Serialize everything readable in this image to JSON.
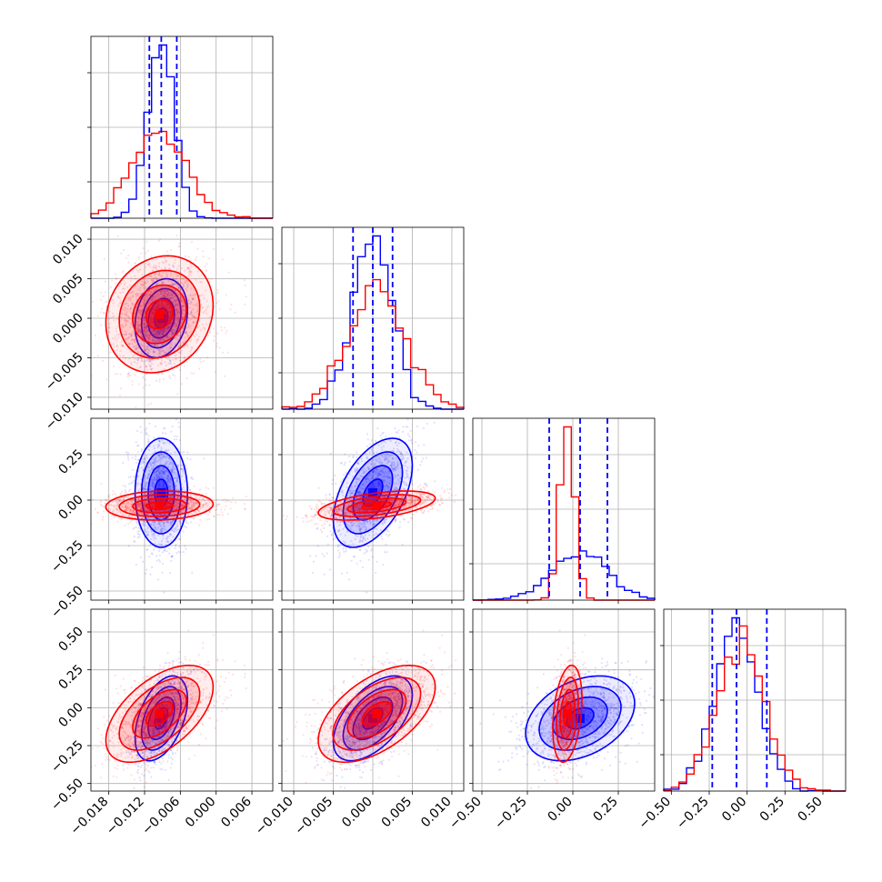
{
  "chart_data": {
    "type": "corner",
    "colors": {
      "blue": "#0000ff",
      "red": "#ff0000",
      "grid": "#b0b0b0"
    },
    "parameters": [
      {
        "range": [
          -0.021,
          0.0095
        ],
        "ticks": [
          -0.018,
          -0.012,
          -0.006,
          0.0,
          0.006
        ],
        "tick_labels": [
          "−0.018",
          "−0.012",
          "−0.006",
          "0.000",
          "0.006"
        ],
        "quantiles": [
          -0.0112,
          -0.0092,
          -0.0066
        ]
      },
      {
        "range": [
          -0.0115,
          0.0115
        ],
        "ticks": [
          -0.01,
          -0.005,
          0.0,
          0.005,
          0.01
        ],
        "tick_labels": [
          "−0.010",
          "−0.005",
          "0.000",
          "0.005",
          "0.010"
        ],
        "quantiles": [
          -0.0025,
          0.0,
          0.0025
        ]
      },
      {
        "range": [
          -0.55,
          0.45
        ],
        "ticks": [
          -0.5,
          -0.25,
          0.0,
          0.25
        ],
        "tick_labels": [
          "−0.50",
          "−0.25",
          "0.00",
          "0.25"
        ],
        "quantiles": [
          -0.13,
          0.04,
          0.19
        ]
      },
      {
        "range": [
          -0.55,
          0.65
        ],
        "ticks": [
          -0.5,
          -0.25,
          0.0,
          0.25,
          0.5
        ],
        "tick_labels": [
          "−0.50",
          "−0.25",
          "0.00",
          "0.25",
          "0.50"
        ],
        "quantiles": [
          -0.23,
          -0.07,
          0.13
        ]
      }
    ],
    "series": [
      {
        "color": "blue",
        "means": [
          -0.0092,
          0.0,
          0.04,
          -0.07
        ],
        "stds": [
          0.0022,
          0.0025,
          0.15,
          0.14
        ],
        "correlations": {
          "1-0": 0.2,
          "2-0": 0.0,
          "2-1": 0.5,
          "3-0": 0.45,
          "3-1": 0.55,
          "3-2": 0.35
        }
      },
      {
        "color": "red",
        "means": [
          -0.0095,
          0.0005,
          -0.03,
          -0.04
        ],
        "stds": [
          0.0045,
          0.0037,
          0.04,
          0.16
        ],
        "correlations": {
          "1-0": 0.15,
          "2-0": 0.1,
          "2-1": 0.5,
          "3-0": 0.55,
          "3-1": 0.55,
          "3-2": 0.3
        }
      }
    ]
  }
}
